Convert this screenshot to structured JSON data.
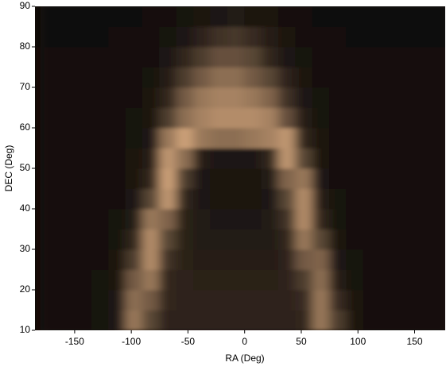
{
  "chart_data": {
    "type": "heatmap",
    "x_label": "RA (Deg)",
    "y_label": "DEC (Deg)",
    "xlim": [
      -185,
      177
    ],
    "ylim": [
      10,
      90
    ],
    "xticks": [
      -150,
      -100,
      -50,
      0,
      50,
      100,
      150
    ],
    "yticks": [
      10,
      20,
      30,
      40,
      50,
      60,
      70,
      80,
      90
    ],
    "color": "#ffc896",
    "zlim": [
      0,
      1
    ],
    "x": [
      -172.5,
      -157.5,
      -142.5,
      -127.5,
      -112.5,
      -97.5,
      -82.5,
      -67.5,
      -52.5,
      -37.5,
      -22.5,
      -7.5,
      7.5,
      22.5,
      37.5,
      52.5,
      67.5,
      82.5,
      97.5,
      112.5,
      127.5,
      142.5,
      157.5,
      172.5
    ],
    "y": [
      12.5,
      17.5,
      22.5,
      27.5,
      32.5,
      37.5,
      42.5,
      47.5,
      52.5,
      57.5,
      62.5,
      67.5,
      72.5,
      77.5,
      82.5,
      87.5
    ],
    "z": [
      [
        0.08,
        0.08,
        0.08,
        0.09,
        0.12,
        0.6,
        0.35,
        0.18,
        0.18,
        0.18,
        0.18,
        0.18,
        0.18,
        0.18,
        0.18,
        0.2,
        0.6,
        0.3,
        0.1,
        0.08,
        0.08,
        0.08,
        0.08,
        0.08
      ],
      [
        0.08,
        0.08,
        0.08,
        0.09,
        0.12,
        0.55,
        0.45,
        0.2,
        0.18,
        0.18,
        0.18,
        0.18,
        0.18,
        0.18,
        0.18,
        0.22,
        0.6,
        0.22,
        0.1,
        0.08,
        0.08,
        0.08,
        0.08,
        0.08
      ],
      [
        0.08,
        0.08,
        0.08,
        0.09,
        0.1,
        0.45,
        0.6,
        0.2,
        0.18,
        0.16,
        0.16,
        0.16,
        0.16,
        0.16,
        0.18,
        0.3,
        0.55,
        0.15,
        0.09,
        0.08,
        0.08,
        0.08,
        0.08,
        0.08
      ],
      [
        0.08,
        0.08,
        0.08,
        0.08,
        0.1,
        0.3,
        0.7,
        0.25,
        0.16,
        0.15,
        0.15,
        0.15,
        0.15,
        0.15,
        0.18,
        0.45,
        0.5,
        0.12,
        0.09,
        0.08,
        0.08,
        0.08,
        0.08,
        0.08
      ],
      [
        0.08,
        0.08,
        0.08,
        0.08,
        0.09,
        0.2,
        0.7,
        0.35,
        0.16,
        0.14,
        0.14,
        0.14,
        0.14,
        0.14,
        0.2,
        0.6,
        0.35,
        0.1,
        0.08,
        0.08,
        0.08,
        0.08,
        0.08,
        0.08
      ],
      [
        0.08,
        0.08,
        0.08,
        0.08,
        0.09,
        0.14,
        0.6,
        0.5,
        0.16,
        0.13,
        0.12,
        0.12,
        0.12,
        0.13,
        0.25,
        0.7,
        0.2,
        0.09,
        0.08,
        0.08,
        0.08,
        0.08,
        0.08,
        0.08
      ],
      [
        0.08,
        0.08,
        0.08,
        0.08,
        0.08,
        0.12,
        0.35,
        0.75,
        0.2,
        0.12,
        0.1,
        0.1,
        0.1,
        0.12,
        0.35,
        0.7,
        0.15,
        0.09,
        0.08,
        0.08,
        0.08,
        0.08,
        0.08,
        0.08
      ],
      [
        0.08,
        0.08,
        0.08,
        0.08,
        0.08,
        0.1,
        0.2,
        0.8,
        0.3,
        0.12,
        0.1,
        0.1,
        0.1,
        0.13,
        0.5,
        0.6,
        0.12,
        0.08,
        0.08,
        0.08,
        0.08,
        0.08,
        0.08,
        0.08
      ],
      [
        0.08,
        0.08,
        0.08,
        0.08,
        0.08,
        0.1,
        0.15,
        0.75,
        0.55,
        0.15,
        0.12,
        0.12,
        0.12,
        0.2,
        0.75,
        0.35,
        0.1,
        0.08,
        0.08,
        0.08,
        0.08,
        0.08,
        0.08,
        0.08
      ],
      [
        0.08,
        0.08,
        0.08,
        0.08,
        0.08,
        0.09,
        0.12,
        0.6,
        0.8,
        0.6,
        0.55,
        0.55,
        0.6,
        0.65,
        0.75,
        0.2,
        0.1,
        0.08,
        0.08,
        0.08,
        0.08,
        0.08,
        0.08,
        0.08
      ],
      [
        0.08,
        0.08,
        0.08,
        0.08,
        0.08,
        0.09,
        0.1,
        0.3,
        0.55,
        0.65,
        0.7,
        0.7,
        0.7,
        0.65,
        0.4,
        0.15,
        0.09,
        0.08,
        0.08,
        0.08,
        0.08,
        0.08,
        0.08,
        0.08
      ],
      [
        0.08,
        0.08,
        0.08,
        0.08,
        0.08,
        0.08,
        0.1,
        0.2,
        0.45,
        0.6,
        0.65,
        0.65,
        0.6,
        0.5,
        0.25,
        0.12,
        0.09,
        0.08,
        0.08,
        0.08,
        0.08,
        0.08,
        0.08,
        0.08
      ],
      [
        0.07,
        0.07,
        0.07,
        0.08,
        0.08,
        0.08,
        0.09,
        0.15,
        0.3,
        0.45,
        0.55,
        0.55,
        0.45,
        0.35,
        0.18,
        0.1,
        0.08,
        0.08,
        0.07,
        0.07,
        0.07,
        0.07,
        0.07,
        0.07
      ],
      [
        0.07,
        0.07,
        0.07,
        0.07,
        0.07,
        0.08,
        0.08,
        0.12,
        0.2,
        0.3,
        0.4,
        0.4,
        0.35,
        0.2,
        0.12,
        0.09,
        0.08,
        0.07,
        0.07,
        0.07,
        0.07,
        0.07,
        0.07,
        0.07
      ],
      [
        0.06,
        0.06,
        0.06,
        0.06,
        0.07,
        0.07,
        0.08,
        0.09,
        0.12,
        0.18,
        0.25,
        0.28,
        0.22,
        0.15,
        0.1,
        0.08,
        0.07,
        0.07,
        0.06,
        0.06,
        0.06,
        0.06,
        0.06,
        0.06
      ],
      [
        0.05,
        0.05,
        0.05,
        0.05,
        0.06,
        0.06,
        0.07,
        0.08,
        0.09,
        0.1,
        0.12,
        0.13,
        0.11,
        0.1,
        0.08,
        0.07,
        0.06,
        0.06,
        0.05,
        0.05,
        0.05,
        0.05,
        0.05,
        0.05
      ]
    ]
  }
}
